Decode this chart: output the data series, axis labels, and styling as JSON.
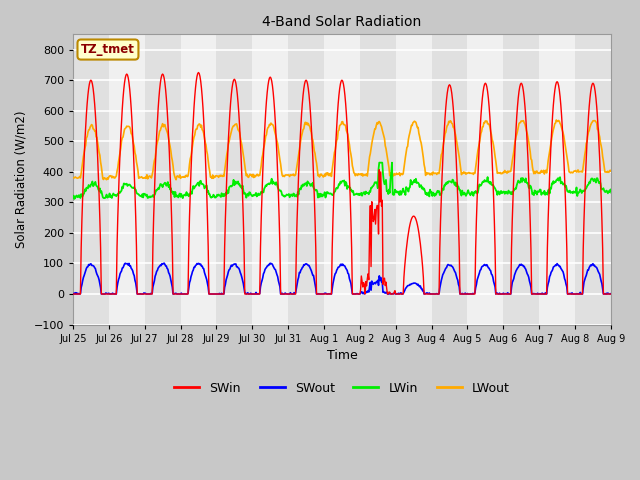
{
  "title": "4-Band Solar Radiation",
  "xlabel": "Time",
  "ylabel": "Solar Radiation (W/m2)",
  "ylim": [
    -100,
    850
  ],
  "xtick_labels": [
    "Jul 25",
    "Jul 26",
    "Jul 27",
    "Jul 28",
    "Jul 29",
    "Jul 30",
    "Jul 31",
    "Aug 1",
    "Aug 2",
    "Aug 3",
    "Aug 4",
    "Aug 5",
    "Aug 6",
    "Aug 7",
    "Aug 8",
    "Aug 9"
  ],
  "xtick_positions": [
    0,
    24,
    48,
    72,
    96,
    120,
    144,
    168,
    192,
    216,
    240,
    264,
    288,
    312,
    336,
    360
  ],
  "yticks": [
    -100,
    0,
    100,
    200,
    300,
    400,
    500,
    600,
    700,
    800
  ],
  "colors": {
    "SWin": "#ff0000",
    "SWout": "#0000ff",
    "LWin": "#00ee00",
    "LWout": "#ffaa00"
  },
  "legend_label": "TZ_tmet",
  "fig_facecolor": "#c8c8c8",
  "plot_facecolor": "#f8f8f8",
  "band_color_light": "#e8e8e8",
  "band_color_dark": "#d8d8d8",
  "grid_color": "#ffffff"
}
